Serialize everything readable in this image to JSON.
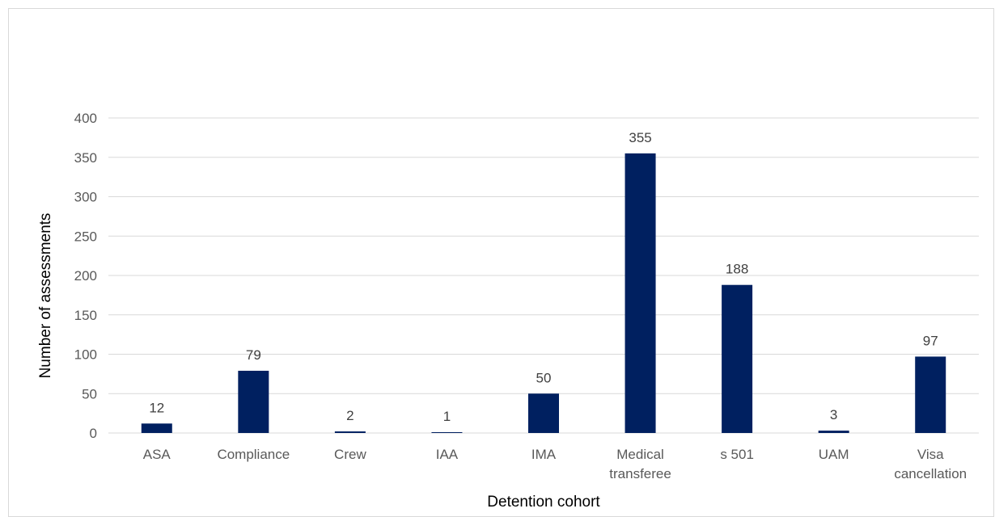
{
  "chart_data": {
    "type": "bar",
    "title": "",
    "xlabel": "Detention cohort",
    "ylabel": "Number of assessments",
    "categories": [
      [
        "ASA"
      ],
      [
        "Compliance"
      ],
      [
        "Crew"
      ],
      [
        "IAA"
      ],
      [
        "IMA"
      ],
      [
        "Medical",
        "transferee"
      ],
      [
        "s 501"
      ],
      [
        "UAM"
      ],
      [
        "Visa",
        "cancellation"
      ]
    ],
    "values": [
      12,
      79,
      2,
      1,
      50,
      355,
      188,
      3,
      97
    ],
    "ylim": [
      0,
      400
    ],
    "yticks": [
      0,
      50,
      100,
      150,
      200,
      250,
      300,
      350,
      400
    ],
    "grid": true,
    "legend": "none",
    "colors": {
      "bar": "#002060",
      "grid": "#d9d9d9",
      "axis": "#d9d9d9"
    }
  }
}
